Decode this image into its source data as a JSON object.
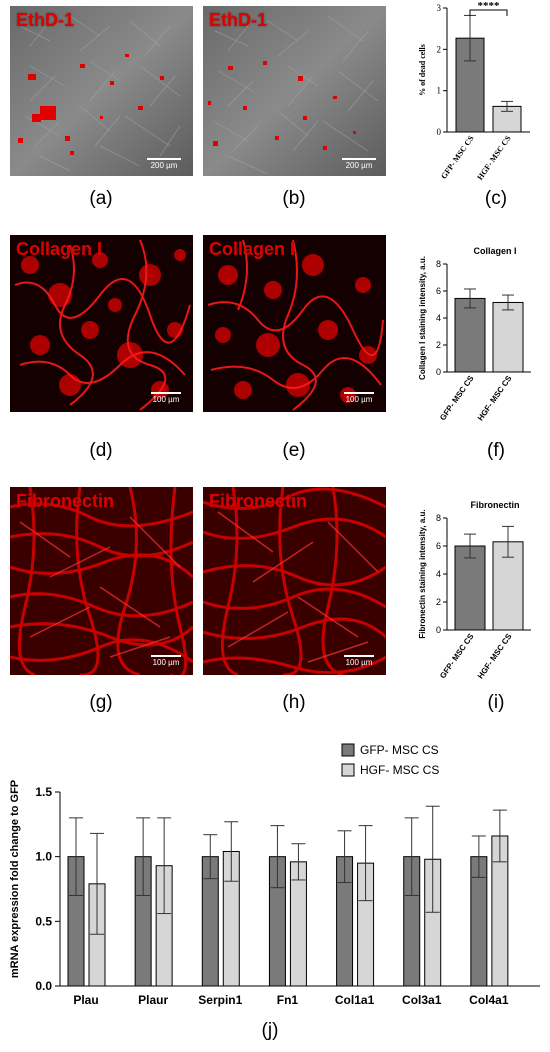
{
  "panels": {
    "a": {
      "label": "EthD-1",
      "scale": "200 µm",
      "letter": "(a)"
    },
    "b": {
      "label": "EthD-1",
      "scale": "200 µm",
      "letter": "(b)"
    },
    "c": {
      "letter": "(c)"
    },
    "d": {
      "label": "Collagen I",
      "scale": "100 µm",
      "letter": "(d)"
    },
    "e": {
      "label": "Collagen I",
      "scale": "100 µm",
      "letter": "(e)"
    },
    "f": {
      "letter": "(f)"
    },
    "g": {
      "label": "Fibronectin",
      "scale": "100 µm",
      "letter": "(g)"
    },
    "h": {
      "label": "Fibronectin",
      "scale": "100 µm",
      "letter": "(h)"
    },
    "i": {
      "letter": "(i)"
    },
    "j": {
      "letter": "(j)"
    }
  },
  "colors": {
    "dark_bar": "#7a7a7a",
    "light_bar": "#d6d6d6",
    "stain": "#e00000"
  },
  "chart_data": [
    {
      "id": "c",
      "type": "bar",
      "title": "",
      "categories": [
        "GFP- MSC CS",
        "HGF- MSC CS"
      ],
      "values": [
        2.27,
        0.62
      ],
      "errors": [
        0.55,
        0.12
      ],
      "ylabel": "% of dead cells",
      "ylim": [
        0,
        3
      ],
      "yticks": [
        "0",
        "1",
        "2",
        "3"
      ],
      "annotation": "****"
    },
    {
      "id": "f",
      "type": "bar",
      "title": "Collagen I",
      "categories": [
        "GFP- MSC CS",
        "HGF- MSC CS"
      ],
      "values": [
        5.45,
        5.15
      ],
      "errors": [
        0.7,
        0.55
      ],
      "ylabel": "Collagen I staining intensity, a.u.",
      "ylim": [
        0,
        8
      ],
      "yticks": [
        "0",
        "2",
        "4",
        "6",
        "8"
      ]
    },
    {
      "id": "i",
      "type": "bar",
      "title": "Fibronectin",
      "categories": [
        "GFP- MSC CS",
        "HGF- MSC CS"
      ],
      "values": [
        6.0,
        6.3
      ],
      "errors": [
        0.85,
        1.1
      ],
      "ylabel": "Fibronectin staining intensity, a.u.",
      "ylim": [
        0,
        8
      ],
      "yticks": [
        "0",
        "2",
        "4",
        "6",
        "8"
      ]
    },
    {
      "id": "j",
      "type": "bar",
      "title": "",
      "categories": [
        "Plau",
        "Plaur",
        "Serpin1",
        "Fn1",
        "Col1a1",
        "Col3a1",
        "Col4a1"
      ],
      "series": [
        {
          "name": "GFP- MSC CS",
          "values": [
            1.0,
            1.0,
            1.0,
            1.0,
            1.0,
            1.0,
            1.0
          ],
          "errors": [
            0.3,
            0.3,
            0.17,
            0.24,
            0.2,
            0.3,
            0.16
          ]
        },
        {
          "name": "HGF- MSC CS",
          "values": [
            0.79,
            0.93,
            1.04,
            0.96,
            0.95,
            0.98,
            1.16
          ],
          "errors": [
            0.39,
            0.37,
            0.23,
            0.14,
            0.29,
            0.41,
            0.2
          ]
        }
      ],
      "ylabel": "mRNA expression fold change to GFP",
      "ylim": [
        0,
        1.5
      ],
      "yticks": [
        "0.0",
        "0.5",
        "1.0",
        "1.5"
      ],
      "legend_position": "top-right"
    }
  ]
}
